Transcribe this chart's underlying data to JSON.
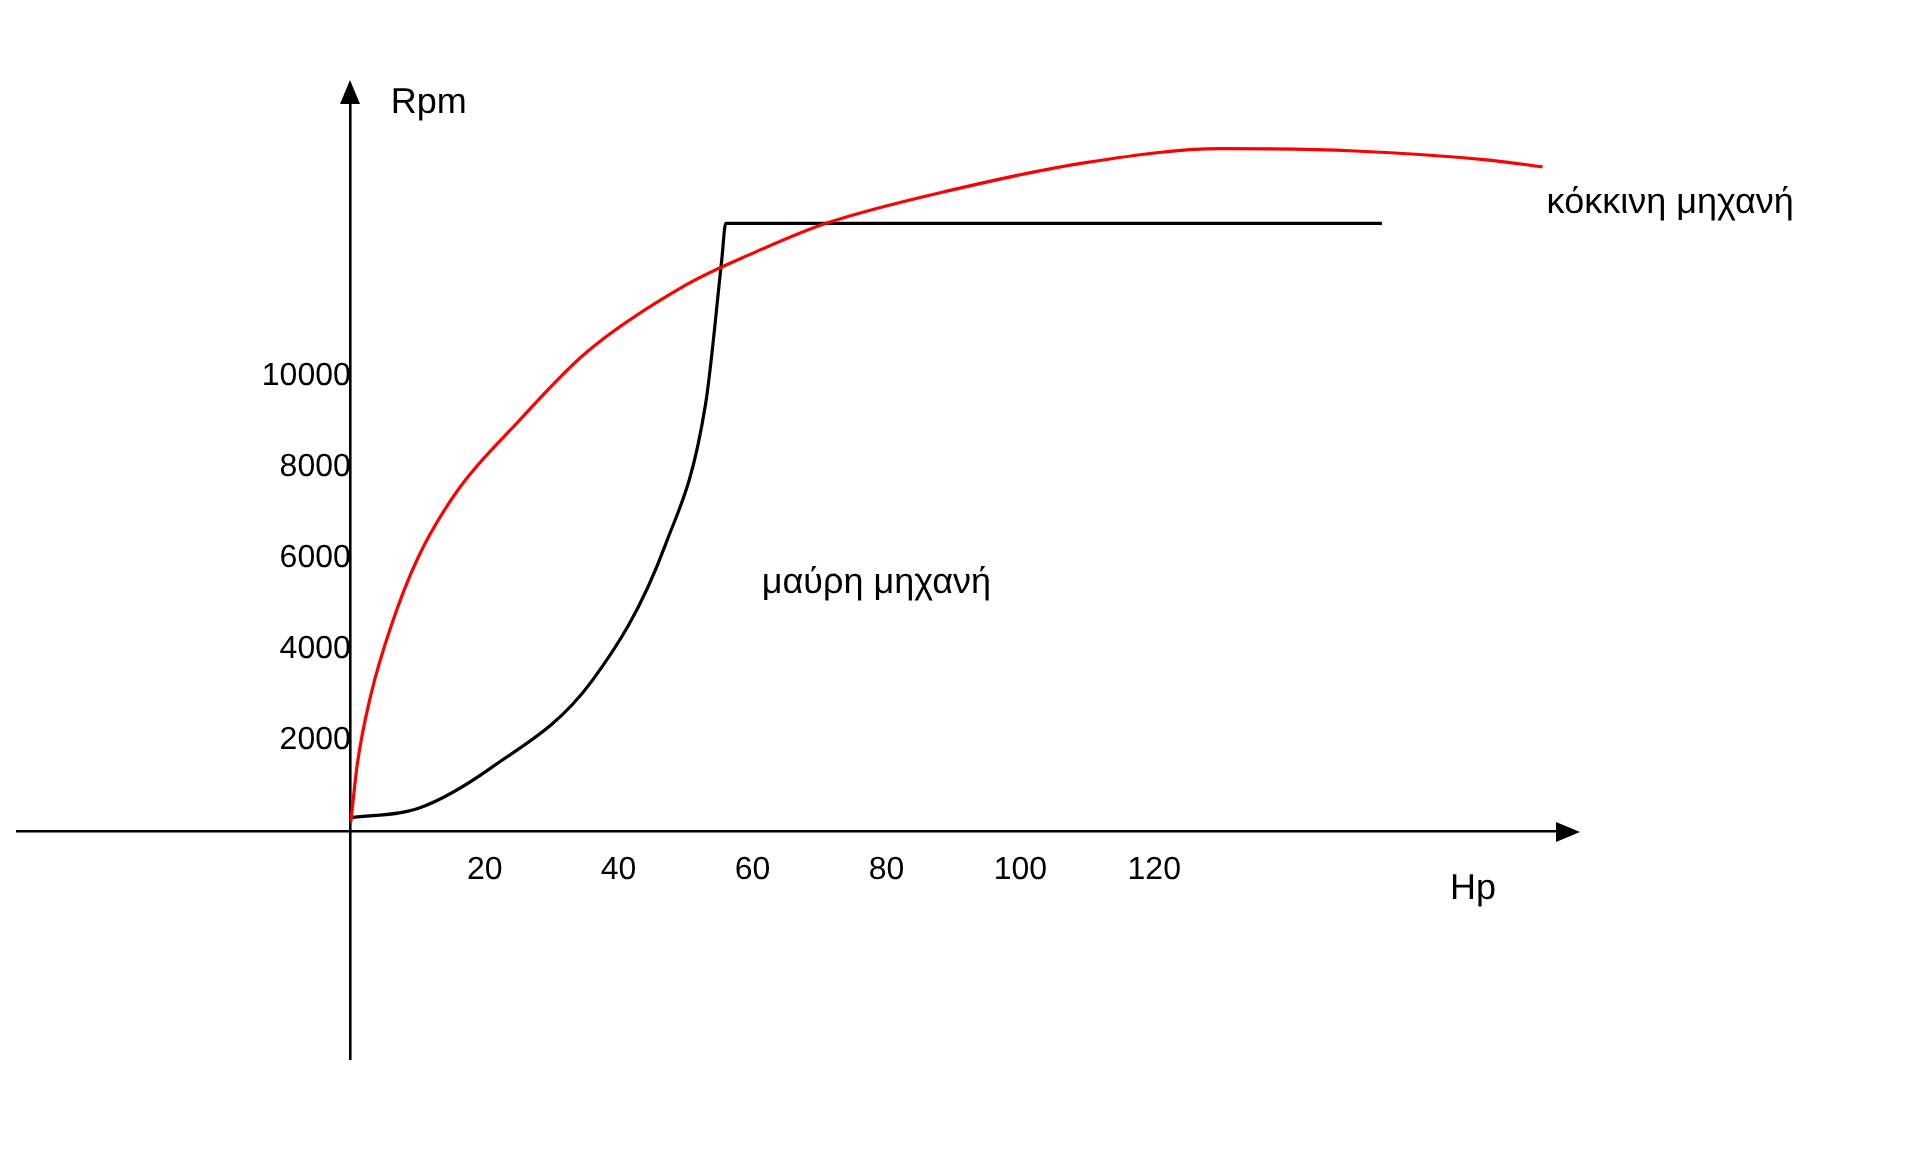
{
  "chart_data": {
    "type": "line",
    "xlabel": "Hp",
    "ylabel": "Rpm",
    "xlim": [
      -50,
      180
    ],
    "ylim": [
      -5000,
      16000
    ],
    "xticks": [
      20,
      40,
      60,
      80,
      100,
      120
    ],
    "yticks": [
      2000,
      4000,
      6000,
      8000,
      10000
    ],
    "grid": false,
    "legend": false,
    "marker": "none",
    "line_style": "solid",
    "series": [
      {
        "name": "κόκκινη μηχανή",
        "color": "#ff0000",
        "x": [
          0,
          1,
          3,
          6,
          10,
          16,
          25,
          35,
          50,
          60,
          71,
          90,
          110,
          130,
          150,
          170,
          178
        ],
        "values": [
          200,
          1500,
          3000,
          4500,
          6000,
          7500,
          9000,
          10500,
          12000,
          12700,
          13360,
          14100,
          14700,
          15000,
          14950,
          14750,
          14600
        ]
      },
      {
        "name": "μαύρη μηχανή",
        "color": "#000000",
        "x": [
          0,
          10,
          21,
          36,
          47,
          53,
          55.4,
          56,
          154
        ],
        "values": [
          300,
          500,
          1400,
          3300,
          6300,
          9400,
          12550,
          13360,
          13360
        ]
      }
    ]
  }
}
